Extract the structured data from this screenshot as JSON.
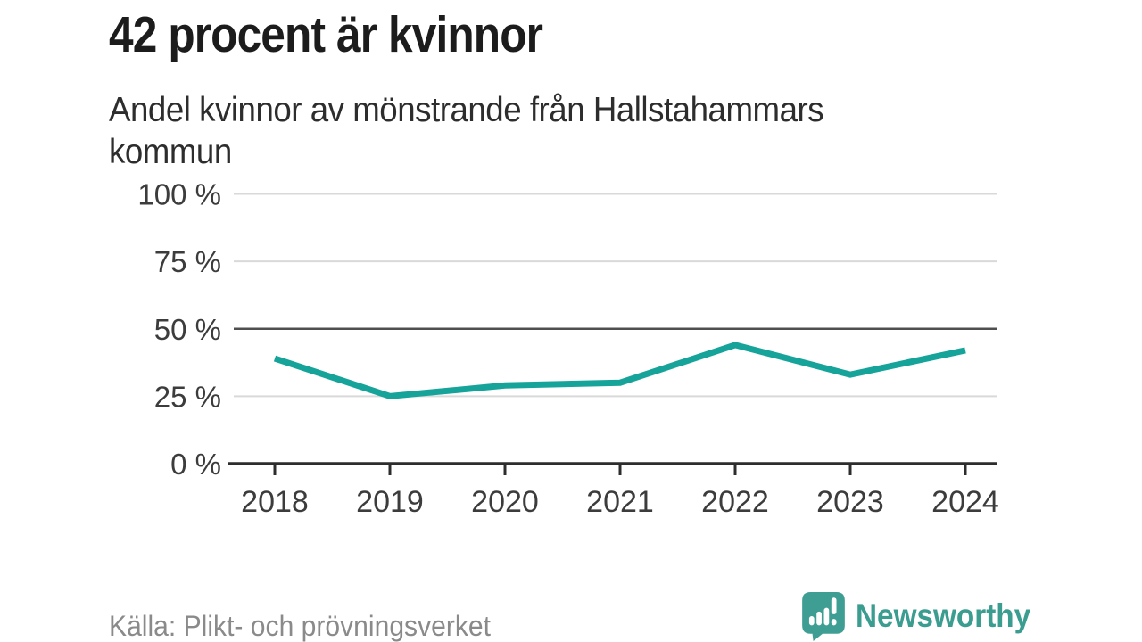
{
  "header": {
    "title": "42 procent är kvinnor",
    "subtitle": "Andel kvinnor av mönstrande från Hallstahammars\nkommun"
  },
  "chart_data": {
    "type": "line",
    "title": "42 procent är kvinnor",
    "subtitle": "Andel kvinnor av mönstrande från Hallstahammars kommun",
    "x": [
      2018,
      2019,
      2020,
      2021,
      2022,
      2023,
      2024
    ],
    "values": [
      39,
      25,
      29,
      30,
      44,
      33,
      42
    ],
    "unit": "%",
    "ylim": [
      0,
      100
    ],
    "yticks": [
      0,
      25,
      50,
      75,
      100
    ],
    "ytick_labels": [
      "0 %",
      "25 %",
      "50 %",
      "75 %",
      "100 %"
    ],
    "grid": true,
    "emphasized_gridline": 50,
    "legend": "none",
    "source": "Källa: Plikt- och prövningsverket"
  },
  "footer": {
    "source": "Källa: Plikt- och prövningsverket",
    "brand": "Newsworthy",
    "brand_icon": "speech-bubble-bar-chart-exclamation-icon"
  },
  "colors": {
    "accent": "#16a49a",
    "brand": "#3b9c90",
    "title_text": "#1c1c1c",
    "subtitle_text": "#2d2d2d",
    "axis_text": "#3c3c3c",
    "grid_light": "#d9d9d9",
    "grid_dark": "#4f4f4f",
    "axis_line": "#2d2d2d",
    "muted_text": "#8a8a8a",
    "background": "#ffffff"
  }
}
